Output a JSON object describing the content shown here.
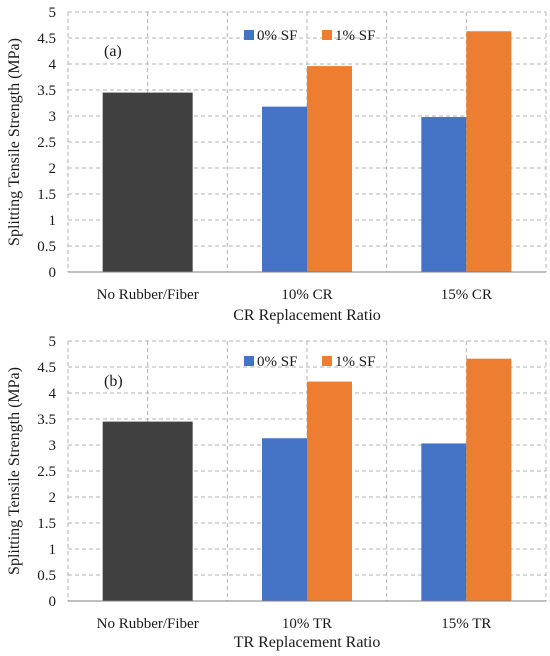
{
  "colors": {
    "baseline": "#404040",
    "sf0": "#4472C4",
    "sf1": "#ED7D31",
    "grid": "#b3b3b3",
    "axis": "#7f7f7f"
  },
  "chart_data": [
    {
      "type": "bar",
      "panel_label": "(a)",
      "xlabel": "CR Replacement Ratio",
      "ylabel": "Splitting Tensile Strength (MPa)",
      "categories": [
        "No Rubber/Fiber",
        "10% CR",
        "15% CR"
      ],
      "ylim": [
        0,
        5
      ],
      "yticks": [
        "0",
        "0.5",
        "1",
        "1.5",
        "2",
        "2.5",
        "3",
        "3.5",
        "4",
        "4.5",
        "5"
      ],
      "grid": true,
      "legend_position": "top-center",
      "baseline_value": 3.45,
      "series": [
        {
          "name": "0% SF",
          "values": [
            null,
            3.18,
            2.98
          ]
        },
        {
          "name": "1% SF",
          "values": [
            null,
            3.96,
            4.63
          ]
        }
      ]
    },
    {
      "type": "bar",
      "panel_label": "(b)",
      "xlabel": "TR Replacement Ratio",
      "ylabel": "Splitting Tensile Strength (MPa)",
      "categories": [
        "No Rubber/Fiber",
        "10% TR",
        "15% TR"
      ],
      "ylim": [
        0,
        5
      ],
      "yticks": [
        "0",
        "0.5",
        "1",
        "1.5",
        "2",
        "2.5",
        "3",
        "3.5",
        "4",
        "4.5",
        "5"
      ],
      "grid": true,
      "legend_position": "top-center",
      "baseline_value": 3.45,
      "series": [
        {
          "name": "0% SF",
          "values": [
            null,
            3.13,
            3.03
          ]
        },
        {
          "name": "1% SF",
          "values": [
            null,
            4.22,
            4.66
          ]
        }
      ]
    }
  ]
}
